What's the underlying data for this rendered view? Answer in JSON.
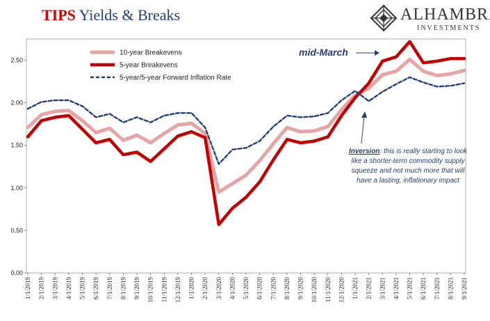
{
  "header": {
    "title_accent": "TIPS",
    "title_rest": " Yields & Breaks"
  },
  "logo": {
    "name": "ALHAMBRA",
    "sub": "INVESTMENTS",
    "icon": "diamond-lattice-icon"
  },
  "chart_data": {
    "type": "line",
    "ylim": [
      0,
      2.75
    ],
    "yticks": [
      "0.00",
      "0.50",
      "1.00",
      "1.50",
      "2.00",
      "2.50"
    ],
    "xticks": [
      "1/1/2019",
      "2/1/2019",
      "3/1/2019",
      "4/1/2019",
      "5/1/2019",
      "6/1/2019",
      "7/1/2019",
      "8/1/2019",
      "9/1/2019",
      "10/1/2019",
      "11/1/2019",
      "12/1/2019",
      "1/1/2020",
      "2/1/2020",
      "3/1/2020",
      "4/1/2020",
      "5/1/2020",
      "6/1/2020",
      "7/1/2020",
      "8/1/2020",
      "9/1/2020",
      "10/1/2020",
      "11/1/2020",
      "12/1/2020",
      "1/1/2021",
      "2/1/2021",
      "3/1/2021",
      "4/1/2021",
      "5/1/2021",
      "6/1/2021",
      "7/1/2021",
      "8/1/2021",
      "9/1/2021"
    ],
    "legend_position": "top-left",
    "series": [
      {
        "name": "10-year Breakevens",
        "color": "#e8a3a3",
        "style": "solid",
        "values": [
          1.71,
          1.86,
          1.9,
          1.91,
          1.79,
          1.65,
          1.7,
          1.56,
          1.62,
          1.53,
          1.64,
          1.74,
          1.76,
          1.64,
          0.95,
          1.05,
          1.15,
          1.32,
          1.52,
          1.71,
          1.66,
          1.67,
          1.72,
          1.92,
          2.09,
          2.17,
          2.33,
          2.37,
          2.51,
          2.37,
          2.32,
          2.34,
          2.38
        ]
      },
      {
        "name": "5-year Breakevens",
        "color": "#c40000",
        "style": "solid",
        "values": [
          1.6,
          1.79,
          1.83,
          1.85,
          1.69,
          1.53,
          1.57,
          1.39,
          1.42,
          1.31,
          1.46,
          1.61,
          1.66,
          1.59,
          0.57,
          0.76,
          0.89,
          1.07,
          1.33,
          1.57,
          1.53,
          1.55,
          1.6,
          1.85,
          2.06,
          2.23,
          2.49,
          2.54,
          2.72,
          2.47,
          2.49,
          2.52,
          2.52
        ]
      },
      {
        "name": "5-year/5-year Forward Inflation Rate",
        "color": "#1f3f7a",
        "style": "dashed",
        "values": [
          1.93,
          2.01,
          2.03,
          2.03,
          1.96,
          1.83,
          1.87,
          1.77,
          1.83,
          1.77,
          1.85,
          1.88,
          1.88,
          1.71,
          1.28,
          1.45,
          1.47,
          1.55,
          1.72,
          1.85,
          1.83,
          1.84,
          1.88,
          2.03,
          2.14,
          2.02,
          2.13,
          2.22,
          2.3,
          2.24,
          2.19,
          2.2,
          2.23
        ]
      }
    ],
    "annotations": {
      "peak": "mid-March",
      "note_head": "Inversion",
      "note_body": ": this is really starting to look like a shorter-term commodity supply squeeze and not much more that will have a lasting, inflationary impact"
    }
  }
}
